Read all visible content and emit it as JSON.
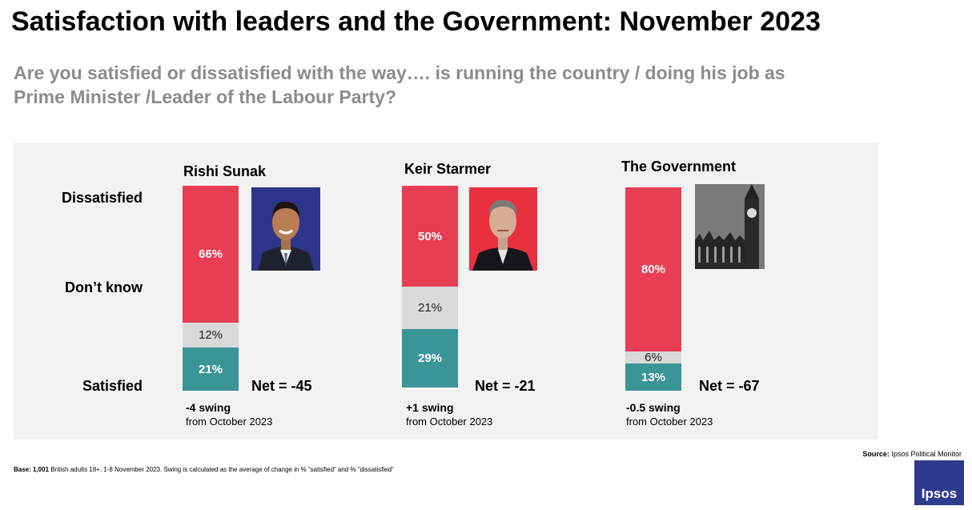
{
  "title": "Satisfaction with leaders and the Government: November 2023",
  "subtitle": "Are you satisfied or dissatisfied with the way…. is running the country / doing his job as Prime Minister /Leader of the Labour Party?",
  "row_labels": {
    "dissatisfied": "Dissatisfied",
    "dont_know": "Don’t know",
    "satisfied": "Satisfied"
  },
  "colors": {
    "dissatisfied": "#e83e53",
    "dont_know": "#d9d9d9",
    "satisfied": "#3a9597",
    "panel": "#f2f2f2"
  },
  "chart_data": [
    {
      "type": "bar",
      "title": "Rishi Sunak",
      "categories": [
        "Dissatisfied",
        "Don’t know",
        "Satisfied"
      ],
      "values": [
        66,
        12,
        21
      ],
      "labels": [
        "66%",
        "12%",
        "21%"
      ],
      "net": "Net = -45",
      "swing": "-4 swing",
      "swing_from": "from October 2023",
      "image": "rishi-sunak-portrait"
    },
    {
      "type": "bar",
      "title": "Keir Starmer",
      "categories": [
        "Dissatisfied",
        "Don’t know",
        "Satisfied"
      ],
      "values": [
        50,
        21,
        29
      ],
      "labels": [
        "50%",
        "21%",
        "29%"
      ],
      "net": "Net = -21",
      "swing": "+1 swing",
      "swing_from": "from October 2023",
      "image": "keir-starmer-portrait"
    },
    {
      "type": "bar",
      "title": "The Government",
      "categories": [
        "Dissatisfied",
        "Don’t know",
        "Satisfied"
      ],
      "values": [
        80,
        6,
        13
      ],
      "labels": [
        "80%",
        "6%",
        "13%"
      ],
      "net": "Net = -67",
      "swing": "-0.5 swing",
      "swing_from": "from October 2023",
      "image": "big-ben-photo"
    }
  ],
  "source": "Source: Ipsos Political Monitor",
  "base": "Base: 1,001 British adults 18+, 1-8 November 2023. Swing is calculated as the average of change in % “satisfied” and % “dissatisfied”",
  "logo": "Ipsos"
}
